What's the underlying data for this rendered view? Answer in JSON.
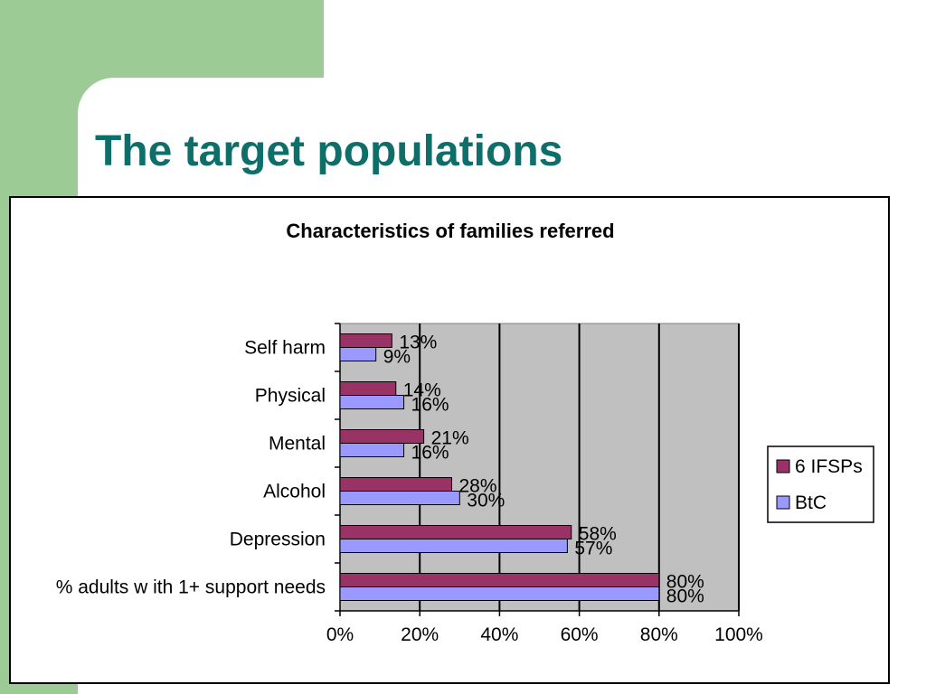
{
  "slide": {
    "title": "The target populations"
  },
  "colors": {
    "background_green": "#9ccb96",
    "title_teal": "#0e6e6a",
    "plot_area": "#c0c0c0",
    "series_ifsps": "#993366",
    "series_btc": "#9999ff"
  },
  "chart_data": {
    "type": "bar",
    "orientation": "horizontal",
    "title": "Characteristics of families referred",
    "categories": [
      "Self harm",
      "Physical",
      "Mental",
      "Alcohol",
      "Depression",
      "% adults w ith 1+ support needs"
    ],
    "series": [
      {
        "name": "6 IFSPs",
        "values": [
          13,
          14,
          21,
          28,
          58,
          80
        ],
        "labels": [
          "13%",
          "14%",
          "21%",
          "28%",
          "58%",
          "80%"
        ],
        "color": "#993366"
      },
      {
        "name": "BtC",
        "values": [
          9,
          16,
          16,
          30,
          57,
          80
        ],
        "labels": [
          "9%",
          "16%",
          "16%",
          "30%",
          "57%",
          "80%"
        ],
        "color": "#9999ff"
      }
    ],
    "xlim": [
      0,
      100
    ],
    "x_ticks": [
      0,
      20,
      40,
      60,
      80,
      100
    ],
    "x_tick_labels": [
      "0%",
      "20%",
      "40%",
      "60%",
      "80%",
      "100%"
    ],
    "grid": true,
    "legend_position": "right"
  }
}
